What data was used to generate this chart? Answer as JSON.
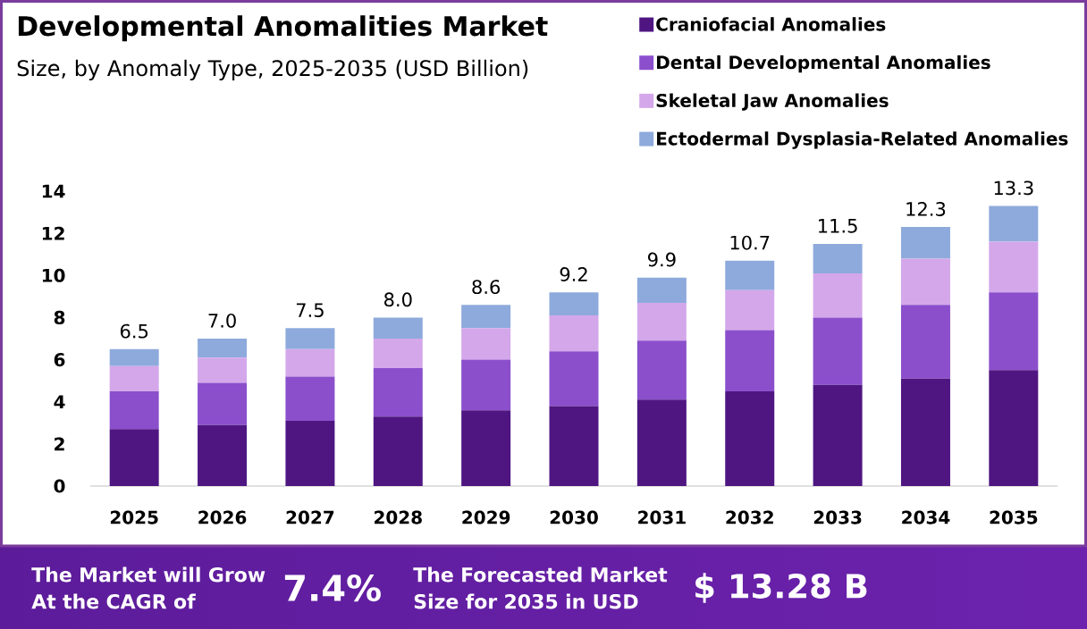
{
  "chart_data": {
    "type": "bar",
    "title": "Developmental Anomalities Market",
    "subtitle": "Size, by Anomaly Type, 2025-2035 (USD Billion)",
    "categories": [
      "2025",
      "2026",
      "2027",
      "2028",
      "2029",
      "2030",
      "2031",
      "2032",
      "2033",
      "2034",
      "2035"
    ],
    "series": [
      {
        "name": "Craniofacial Anomalies",
        "color": "#4f1682",
        "values": [
          2.7,
          2.9,
          3.1,
          3.3,
          3.6,
          3.8,
          4.1,
          4.5,
          4.8,
          5.1,
          5.5
        ]
      },
      {
        "name": "Dental Developmental Anomalies",
        "color": "#8b4fcc",
        "values": [
          1.8,
          2.0,
          2.1,
          2.3,
          2.4,
          2.6,
          2.8,
          2.9,
          3.2,
          3.5,
          3.7
        ]
      },
      {
        "name": "Skeletal Jaw Anomalies",
        "color": "#d4a7ea",
        "values": [
          1.2,
          1.2,
          1.3,
          1.4,
          1.5,
          1.7,
          1.8,
          1.9,
          2.1,
          2.2,
          2.4
        ]
      },
      {
        "name": "Ectodermal Dysplasia-Related Anomalies",
        "color": "#8eaadc",
        "values": [
          0.8,
          0.9,
          1.0,
          1.0,
          1.1,
          1.1,
          1.2,
          1.4,
          1.4,
          1.5,
          1.7
        ]
      }
    ],
    "stacked": true,
    "ylim": [
      0,
      14
    ],
    "yticks": [
      0,
      2,
      4,
      6,
      8,
      10,
      12,
      14
    ],
    "legend": "top right",
    "totals": [
      "6.5",
      "7.0",
      "7.5",
      "8.0",
      "8.6",
      "9.2",
      "9.9",
      "10.7",
      "11.5",
      "12.3",
      "13.3"
    ],
    "annotations": [
      "The Market will Grow At the CAGR of",
      "7.4%",
      "The Forecasted Market Size for 2035 in USD",
      "$ 13.28 B"
    ]
  }
}
